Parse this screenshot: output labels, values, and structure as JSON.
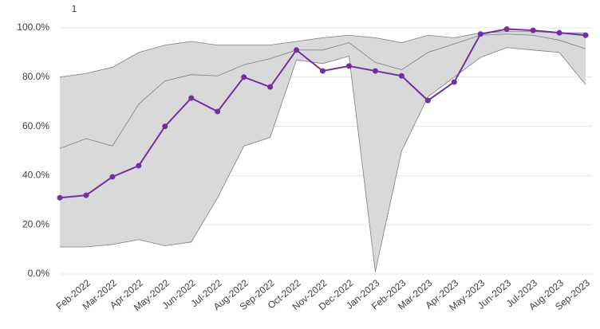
{
  "chart_data": {
    "type": "line",
    "title": "1",
    "categories": [
      null,
      "Feb-2022",
      "Mar-2022",
      "Apr-2022",
      "May-2022",
      "Jun-2022",
      "Jul-2022",
      "Aug-2022",
      "Sep-2022",
      "Oct-2022",
      "Nov-2022",
      "Dec-2022",
      "Jan-2023",
      "Feb-2023",
      "Mar-2023",
      "Apr-2023",
      "May-2023",
      "Jun-2023",
      "Jul-2023",
      "Aug-2023",
      "Sep-2023"
    ],
    "series": [
      {
        "color": "#7f7f7f",
        "values": [
          80,
          81.5,
          84,
          90,
          93,
          94.5,
          93,
          93,
          93,
          94.5,
          96,
          97,
          96,
          94,
          97,
          96,
          98,
          98.5,
          98.5,
          98,
          98
        ]
      },
      {
        "color": "#7f7f7f",
        "values": [
          51,
          55,
          52,
          69,
          78.5,
          81,
          80.5,
          85,
          87.5,
          91,
          91,
          94,
          86,
          83,
          90,
          93.5,
          97,
          97.5,
          97,
          95,
          91.5
        ]
      },
      {
        "color": "#7f7f7f",
        "values": [
          11,
          11,
          12,
          14,
          11.5,
          13,
          31,
          52,
          55.5,
          87,
          85.5,
          88.5,
          1,
          50,
          72,
          80,
          88,
          92,
          91,
          90,
          77
        ]
      },
      {
        "color": "#7030a0",
        "values": [
          31,
          32,
          39.5,
          44,
          60,
          71.5,
          66,
          80,
          76,
          91,
          82.5,
          84.5,
          82.5,
          80.5,
          70.5,
          78,
          97.5,
          99.5,
          99,
          98,
          97
        ]
      }
    ],
    "area_color": "#d9d9d9",
    "ylim": [
      0,
      100
    ],
    "yticks": [
      {
        "value": 0,
        "label": "0.0%"
      },
      {
        "value": 20,
        "label": "20.0%"
      },
      {
        "value": 40,
        "label": "40.0%"
      },
      {
        "value": 60,
        "label": "60.0%"
      },
      {
        "value": 80,
        "label": "80.0%"
      },
      {
        "value": 100,
        "label": "100.0%"
      }
    ],
    "grid": true
  }
}
